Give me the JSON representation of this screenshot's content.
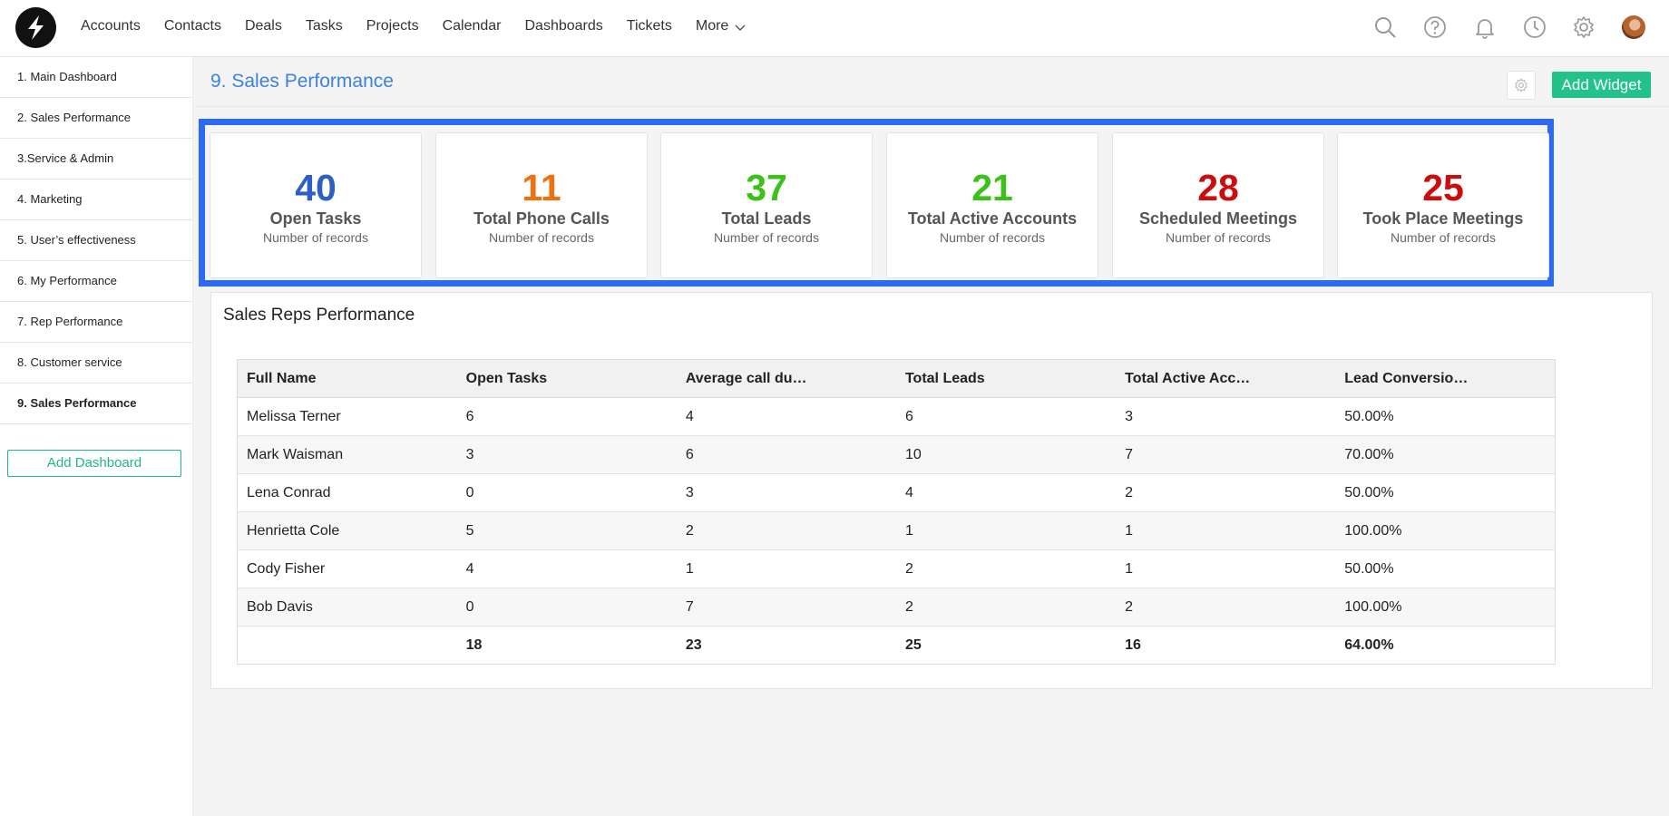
{
  "nav": {
    "items": [
      "Accounts",
      "Contacts",
      "Deals",
      "Tasks",
      "Projects",
      "Calendar",
      "Dashboards",
      "Tickets"
    ],
    "more_label": "More"
  },
  "icons": {
    "logo": "brand-logo",
    "search": "search-icon",
    "help": "help-icon",
    "notifications": "bell-icon",
    "history": "clock-icon",
    "settings": "gear-icon",
    "avatar": "user-avatar"
  },
  "sidebar": {
    "items": [
      "1. Main Dashboard",
      "2. Sales Performance",
      "3.Service & Admin",
      "4. Marketing",
      "5. User’s effectiveness",
      "6. My Performance",
      "7. Rep Performance",
      "8. Customer service",
      "9. Sales Performance"
    ],
    "active_index": 8,
    "add_label": "Add Dashboard"
  },
  "page": {
    "title": "9. Sales Performance",
    "add_widget_label": "Add Widget"
  },
  "kpis": [
    {
      "value": "40",
      "title": "Open Tasks",
      "subtitle": "Number of records",
      "color": "#2d5fc4"
    },
    {
      "value": "11",
      "title": "Total Phone Calls",
      "subtitle": "Number of records",
      "color": "#f07010"
    },
    {
      "value": "37",
      "title": "Total Leads",
      "subtitle": "Number of records",
      "color": "#3ac21a"
    },
    {
      "value": "21",
      "title": "Total Active Accounts",
      "subtitle": "Number of records",
      "color": "#3ac21a"
    },
    {
      "value": "28",
      "title": "Scheduled Meetings",
      "subtitle": "Number of records",
      "color": "#cc0d0d"
    },
    {
      "value": "25",
      "title": "Took Place Meetings",
      "subtitle": "Number of records",
      "color": "#cc0d0d"
    }
  ],
  "colors": {
    "accent": "#3b82e0",
    "highlight_border": "#2b6af5",
    "button_green": "#23c28a"
  },
  "table": {
    "title": "Sales Reps Performance",
    "columns": [
      "Full Name",
      "Open Tasks",
      "Average call du…",
      "Total Leads",
      "Total Active Acc…",
      "Lead Conversio…"
    ],
    "rows": [
      [
        "Melissa Terner",
        "6",
        "4",
        "6",
        "3",
        "50.00%"
      ],
      [
        "Mark Waisman",
        "3",
        "6",
        "10",
        "7",
        "70.00%"
      ],
      [
        "Lena Conrad",
        "0",
        "3",
        "4",
        "2",
        "50.00%"
      ],
      [
        "Henrietta Cole",
        "5",
        "2",
        "1",
        "1",
        "100.00%"
      ],
      [
        "Cody Fisher",
        "4",
        "1",
        "2",
        "1",
        "50.00%"
      ],
      [
        "Bob Davis",
        "0",
        "7",
        "2",
        "2",
        "100.00%"
      ]
    ],
    "totals": [
      "",
      "18",
      "23",
      "25",
      "16",
      "64.00%"
    ]
  }
}
